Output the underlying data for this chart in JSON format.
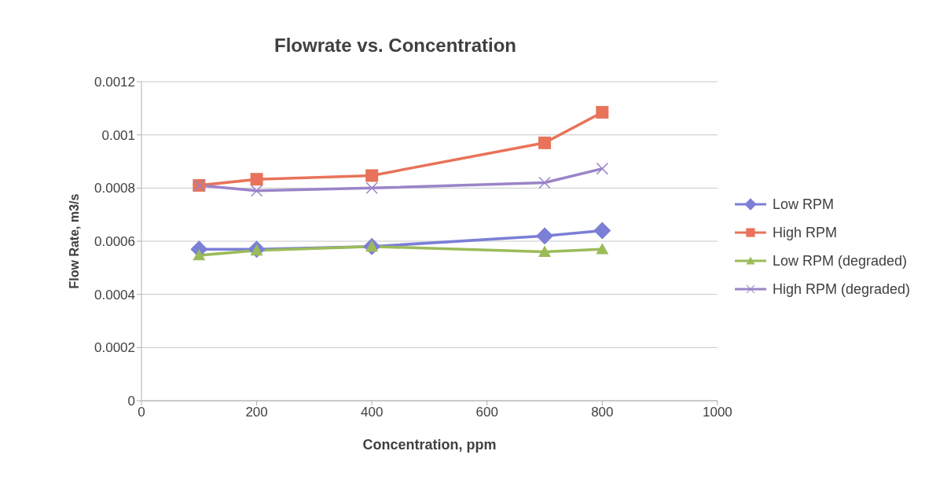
{
  "chart_data": {
    "type": "line",
    "title": "Flowrate vs. Concentration",
    "xlabel": "Concentration, ppm",
    "ylabel": "Flow Rate, m3/s",
    "x": [
      100,
      200,
      400,
      700,
      800
    ],
    "series": [
      {
        "name": "Low RPM",
        "color": "#7b7fd6",
        "marker": "diamond",
        "values": [
          0.00057,
          0.00057,
          0.00058,
          0.00062,
          0.00064
        ]
      },
      {
        "name": "High RPM",
        "color": "#e8735a",
        "marker": "square",
        "values": [
          0.00081,
          0.000833,
          0.000847,
          0.00097,
          0.001085
        ]
      },
      {
        "name": "Low RPM (degraded)",
        "color": "#9bbb59",
        "marker": "triangle",
        "values": [
          0.000547,
          0.000565,
          0.00058,
          0.00056,
          0.00057
        ]
      },
      {
        "name": "High RPM (degraded)",
        "color": "#9b84c8",
        "marker": "cross",
        "values": [
          0.00081,
          0.00079,
          0.0008,
          0.00082,
          0.000873
        ]
      }
    ],
    "xlim": [
      0,
      1000
    ],
    "xticks": [
      0,
      200,
      400,
      600,
      800,
      1000
    ],
    "ylim": [
      0,
      0.0012
    ],
    "yticks": [
      0,
      0.0002,
      0.0004,
      0.0006,
      0.0008,
      0.001,
      0.0012
    ],
    "grid": "y",
    "legend": "right"
  }
}
